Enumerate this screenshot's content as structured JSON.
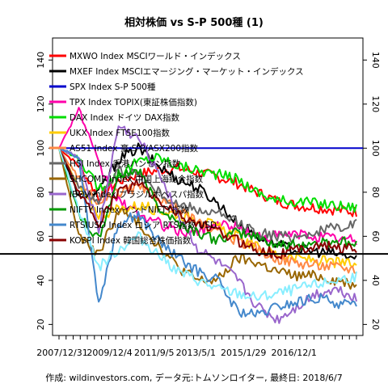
{
  "chart_data": {
    "type": "line",
    "title": "相対株価 vs S-P 500種 (1)",
    "caption": "作成: wildinvestors.com, データ元:トムソンロイター, 最終日: 2018/6/7",
    "xlabel": "",
    "ylabel": "",
    "x_ticks": [
      "2007/12/31",
      "2009/12/4",
      "2011/9/5",
      "2013/5/1",
      "2015/1/29",
      "2016/12/1"
    ],
    "x_tick_pos": [
      0,
      0.17,
      0.32,
      0.46,
      0.62,
      0.79
    ],
    "ylim": [
      15,
      150
    ],
    "y_ticks": [
      20,
      40,
      60,
      80,
      100,
      120,
      140
    ],
    "hlines": [
      {
        "y": 100,
        "color": "#0000cc"
      },
      {
        "y": 52,
        "color": "#000000"
      }
    ],
    "legend_position": "top-left",
    "series": [
      {
        "name": "MXWO Index MSCIワールド・インデックス",
        "color": "#ff0000",
        "values": [
          100,
          92,
          78,
          85,
          88,
          90,
          91,
          89,
          87,
          84,
          80,
          76,
          74,
          73,
          72,
          71
        ]
      },
      {
        "name": "MXEF Index MSCIエマージング・マーケット・インデックス",
        "color": "#000000",
        "values": [
          100,
          78,
          80,
          95,
          100,
          92,
          86,
          82,
          75,
          66,
          60,
          56,
          54,
          53,
          52,
          50
        ]
      },
      {
        "name": "SPX Index S-P 500種",
        "color": "#0000cc",
        "values": [
          100,
          100,
          100,
          100,
          100,
          100,
          100,
          100,
          100,
          100,
          100,
          100,
          100,
          100,
          100,
          100
        ]
      },
      {
        "name": "TPX Index TOPIX(東証株価指数)",
        "color": "#ff00aa",
        "values": [
          100,
          118,
          92,
          76,
          70,
          66,
          62,
          62,
          66,
          64,
          60,
          60,
          61,
          60,
          59,
          58
        ]
      },
      {
        "name": "DAX Index ドイツ DAX指数",
        "color": "#00dd00",
        "values": [
          100,
          95,
          82,
          88,
          94,
          96,
          92,
          90,
          88,
          86,
          80,
          76,
          76,
          75,
          74,
          73
        ]
      },
      {
        "name": "UKX Index FTSE100指数",
        "color": "#ffcc00",
        "values": [
          100,
          82,
          70,
          72,
          74,
          72,
          70,
          68,
          64,
          60,
          55,
          52,
          50,
          49,
          48,
          47
        ]
      },
      {
        "name": "AS51 Index 豪 S-P/ASX200指数",
        "color": "#ff8844",
        "values": [
          100,
          86,
          74,
          80,
          82,
          78,
          72,
          66,
          62,
          58,
          54,
          50,
          48,
          47,
          46,
          45
        ]
      },
      {
        "name": "HSI Index 香港ハンセン指数",
        "color": "#666666",
        "values": [
          100,
          82,
          76,
          90,
          88,
          80,
          74,
          72,
          70,
          66,
          62,
          60,
          60,
          62,
          64,
          66
        ]
      },
      {
        "name": "SHCOMP Index 中国上海総合指数",
        "color": "#996600",
        "values": [
          100,
          60,
          52,
          72,
          66,
          56,
          46,
          40,
          40,
          50,
          48,
          44,
          42,
          42,
          40,
          38
        ]
      },
      {
        "name": "IBOV Index ブラジルボベスパ指数",
        "color": "#9966cc",
        "values": [
          100,
          96,
          62,
          110,
          104,
          90,
          70,
          54,
          48,
          40,
          28,
          22,
          28,
          34,
          36,
          32
        ]
      },
      {
        "name": "NIFTY Index インドNIFTY指数",
        "color": "#009900",
        "values": [
          100,
          70,
          58,
          88,
          90,
          74,
          66,
          62,
          58,
          62,
          60,
          56,
          56,
          57,
          58,
          56
        ]
      },
      {
        "name": "RTSIUSD Index ロシア RTS指数 USD",
        "color": "#4488cc",
        "values": [
          100,
          96,
          30,
          66,
          70,
          58,
          50,
          44,
          40,
          26,
          24,
          28,
          30,
          32,
          30,
          28
        ]
      },
      {
        "name": "KOSPI Index 韓国総合株価指数",
        "color": "#880000",
        "values": [
          100,
          80,
          66,
          80,
          84,
          76,
          70,
          66,
          62,
          58,
          54,
          52,
          54,
          56,
          55,
          54
        ]
      },
      {
        "name": "",
        "color": "#88eeff",
        "values": [
          100,
          72,
          46,
          54,
          60,
          52,
          44,
          40,
          36,
          34,
          32,
          34,
          36,
          38,
          40,
          42
        ]
      }
    ]
  }
}
